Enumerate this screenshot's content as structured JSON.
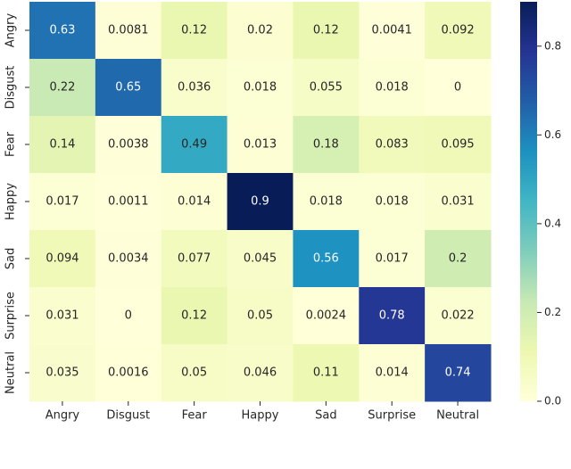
{
  "chart_data": {
    "type": "heatmap",
    "xcategories": [
      "Angry",
      "Disgust",
      "Fear",
      "Happy",
      "Sad",
      "Surprise",
      "Neutral"
    ],
    "ycategories": [
      "Angry",
      "Disgust",
      "Fear",
      "Happy",
      "Sad",
      "Surprise",
      "Neutral"
    ],
    "values": [
      [
        0.63,
        0.0081,
        0.12,
        0.02,
        0.12,
        0.0041,
        0.092
      ],
      [
        0.22,
        0.65,
        0.036,
        0.018,
        0.055,
        0.018,
        0
      ],
      [
        0.14,
        0.0038,
        0.49,
        0.013,
        0.18,
        0.083,
        0.095
      ],
      [
        0.017,
        0.0011,
        0.014,
        0.9,
        0.018,
        0.018,
        0.031
      ],
      [
        0.094,
        0.0034,
        0.077,
        0.045,
        0.56,
        0.017,
        0.2
      ],
      [
        0.031,
        0,
        0.12,
        0.05,
        0.0024,
        0.78,
        0.022
      ],
      [
        0.035,
        0.0016,
        0.05,
        0.046,
        0.11,
        0.014,
        0.74
      ]
    ],
    "colormap": "YlGnBu",
    "clim": [
      0,
      0.9
    ],
    "cticks": [
      {
        "value": 0,
        "label": "0.0"
      },
      0.2,
      0.4,
      0.6,
      0.8
    ]
  }
}
